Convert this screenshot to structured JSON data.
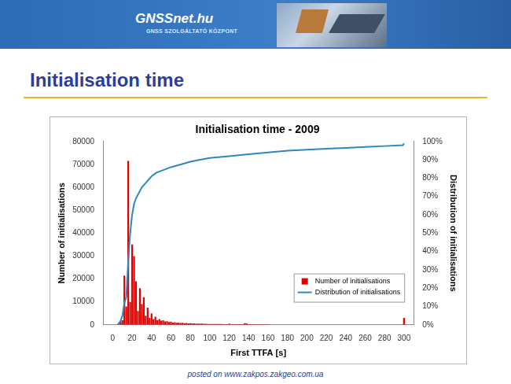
{
  "header": {
    "logo": "GNSSnet.hu",
    "logo_subtitle": "GNSS SZOLGÁLTATÓ KÖZPONT"
  },
  "slide_title": "Initialisation time",
  "footer": "posted on www.zakpos.zakgeo.com.ua",
  "chart_data": {
    "type": "bar",
    "title": "Initialisation time - 2009",
    "x_label": "First TTFA [s]",
    "y_label": "Number of initialisations",
    "y2_label": "Distribution of initialisations",
    "xlim": [
      0,
      300
    ],
    "xticks": [
      0,
      20,
      40,
      60,
      80,
      100,
      120,
      140,
      160,
      180,
      200,
      220,
      240,
      260,
      280,
      300
    ],
    "ylim": [
      0,
      80000
    ],
    "yticks": [
      0,
      10000,
      20000,
      30000,
      40000,
      50000,
      60000,
      70000,
      80000
    ],
    "y2lim": [
      0,
      100
    ],
    "y2ticks": [
      {
        "value": 0,
        "label": "0%"
      },
      {
        "value": 10,
        "label": "10%"
      },
      {
        "value": 20,
        "label": "20%"
      },
      {
        "value": 30,
        "label": "30%"
      },
      {
        "value": 40,
        "label": "40%"
      },
      {
        "value": 50,
        "label": "50%"
      },
      {
        "value": 60,
        "label": "60%"
      },
      {
        "value": 70,
        "label": "70%"
      },
      {
        "value": 80,
        "label": "80%"
      },
      {
        "value": 90,
        "label": "90%"
      },
      {
        "value": 100,
        "label": "100%"
      }
    ],
    "grid": false,
    "legend": "lower right",
    "series": [
      {
        "name": "Number of initialisations",
        "type": "bar",
        "color": "#e00000",
        "x": [
          6,
          8,
          10,
          12,
          14,
          16,
          18,
          20,
          22,
          24,
          26,
          28,
          30,
          32,
          34,
          36,
          38,
          40,
          42,
          44,
          46,
          48,
          50,
          52,
          54,
          56,
          58,
          60,
          62,
          64,
          66,
          68,
          70,
          72,
          74,
          76,
          78,
          80,
          82,
          84,
          86,
          88,
          90,
          92,
          94,
          96,
          98,
          100,
          102,
          104,
          106,
          108,
          110,
          112,
          114,
          116,
          118,
          120,
          122,
          124,
          126,
          128,
          130,
          132,
          134,
          136,
          138,
          140,
          142,
          144,
          146,
          148,
          150,
          152,
          154,
          156,
          158,
          160,
          300
        ],
        "values": [
          300,
          1500,
          2000,
          21500,
          8000,
          71500,
          10000,
          35000,
          30000,
          19000,
          6000,
          16000,
          9000,
          12000,
          4000,
          7500,
          3000,
          5000,
          2500,
          3500,
          2000,
          2500,
          1800,
          2000,
          1500,
          1600,
          1200,
          1400,
          1000,
          1100,
          900,
          1000,
          800,
          900,
          700,
          800,
          600,
          700,
          600,
          600,
          500,
          550,
          500,
          500,
          450,
          450,
          400,
          400,
          400,
          380,
          350,
          350,
          330,
          320,
          300,
          300,
          300,
          500,
          300,
          280,
          270,
          260,
          250,
          250,
          240,
          700,
          600,
          300,
          250,
          240,
          230,
          220,
          210,
          200,
          200,
          190,
          180,
          180,
          3000
        ]
      },
      {
        "name": "Distribution of initialisations",
        "type": "line",
        "axis": "y2",
        "color": "#2e86c1",
        "x": [
          5,
          8,
          10,
          12,
          14,
          16,
          18,
          20,
          22,
          24,
          26,
          28,
          30,
          35,
          40,
          45,
          50,
          60,
          70,
          80,
          90,
          100,
          120,
          140,
          160,
          180,
          200,
          220,
          240,
          260,
          280,
          299,
          300
        ],
        "values": [
          0,
          2,
          5,
          12,
          15,
          35,
          50,
          60,
          66,
          69,
          71,
          73,
          75,
          78,
          81,
          83,
          84,
          86,
          87.5,
          89,
          90,
          91,
          92,
          93,
          94,
          95,
          95.5,
          96,
          96.5,
          97,
          97.5,
          98,
          99
        ]
      }
    ]
  }
}
